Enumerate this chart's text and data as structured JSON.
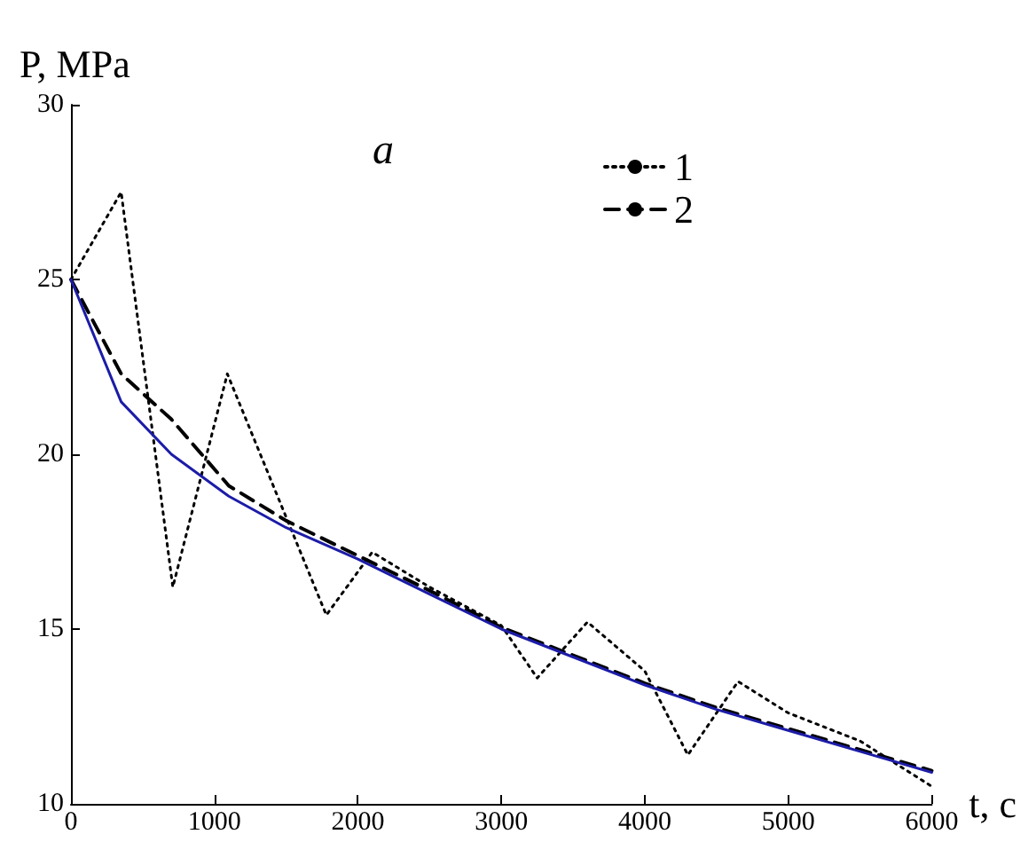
{
  "chart_data": {
    "type": "line",
    "xlabel": "t, c",
    "ylabel": "P, MPa",
    "annotations": [
      "a"
    ],
    "xlim": [
      0,
      6000
    ],
    "xticks": [
      0,
      1000,
      2000,
      3000,
      4000,
      5000,
      6000
    ],
    "ylim": [
      10,
      30
    ],
    "yticks": [
      10,
      15,
      20,
      25,
      30
    ],
    "grid": false,
    "legend": "top right",
    "marker": "none",
    "series": [
      {
        "name": "1",
        "color": "#000000",
        "line_style": "dotted",
        "x": [
          0,
          350,
          710,
          1090,
          1780,
          2100,
          2500,
          3000,
          3250,
          3600,
          4000,
          4300,
          4650,
          5000,
          5500,
          6000
        ],
        "values": [
          25,
          27.5,
          16.2,
          22.3,
          15.4,
          17.2,
          16.2,
          15.1,
          13.6,
          15.2,
          13.8,
          11.4,
          13.5,
          12.6,
          11.8,
          10.5
        ]
      },
      {
        "name": "2",
        "color": "#000000",
        "line_style": "dashed",
        "x": [
          0,
          350,
          700,
          1100,
          1500,
          2000,
          2500,
          3000,
          3500,
          4000,
          4500,
          5000,
          5500,
          6000
        ],
        "values": [
          25,
          22.3,
          21.0,
          19.1,
          18.1,
          17.1,
          16.1,
          15.05,
          14.25,
          13.45,
          12.75,
          12.15,
          11.55,
          10.95
        ]
      },
      {
        "color": "#1c1ca8",
        "line_style": "solid",
        "x": [
          0,
          350,
          700,
          1100,
          1500,
          2000,
          2500,
          3000,
          3500,
          4000,
          4500,
          5000,
          5500,
          6000
        ],
        "values": [
          25,
          21.5,
          20.0,
          18.8,
          17.9,
          17.0,
          16.0,
          15.0,
          14.2,
          13.4,
          12.7,
          12.1,
          11.5,
          10.9
        ]
      }
    ]
  }
}
